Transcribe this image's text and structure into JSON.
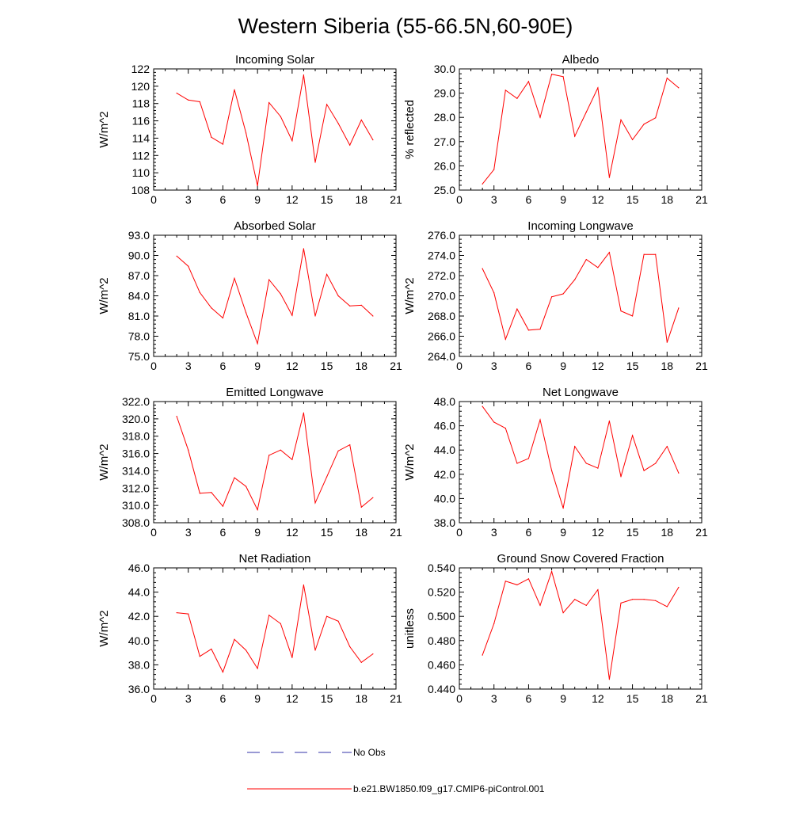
{
  "figure": {
    "title": "Western Siberia (55-66.5N,60-90E)",
    "line_color": "#ff0000",
    "obs_color": "#3333aa"
  },
  "legend": {
    "items": [
      {
        "label": "No Obs",
        "style": "dashed",
        "color": "#3333aa"
      },
      {
        "label": "b.e21.BW1850.f09_g17.CMIP6-piControl.001",
        "style": "solid",
        "color": "#ff0000"
      }
    ]
  },
  "chart_data": [
    {
      "type": "line",
      "title": "Incoming Solar",
      "ylabel": "W/m^2",
      "xlim": [
        0,
        21
      ],
      "ylim": [
        108,
        122
      ],
      "xticks": [
        0,
        3,
        6,
        9,
        12,
        15,
        18,
        21
      ],
      "yticks": [
        108,
        110,
        112,
        114,
        116,
        118,
        120,
        122
      ],
      "ytick_labels": [
        "108",
        "110",
        "112",
        "114",
        "116",
        "118",
        "120",
        "122"
      ],
      "series": [
        {
          "x": [
            2,
            3,
            4,
            5,
            6,
            7,
            8,
            9,
            10,
            11,
            12,
            13,
            14,
            15,
            16,
            17,
            18,
            19
          ],
          "values": [
            119.2,
            118.4,
            118.2,
            114.1,
            113.3,
            119.6,
            114.6,
            108.5,
            118.1,
            116.5,
            113.7,
            121.3,
            111.2,
            117.9,
            115.7,
            113.2,
            116.1,
            113.8
          ]
        }
      ]
    },
    {
      "type": "line",
      "title": "Albedo",
      "ylabel": "% reflected",
      "xlim": [
        0,
        21
      ],
      "ylim": [
        25,
        30
      ],
      "xticks": [
        0,
        3,
        6,
        9,
        12,
        15,
        18,
        21
      ],
      "yticks": [
        25,
        26,
        27,
        28,
        29,
        30
      ],
      "ytick_labels": [
        "25.0",
        "26.0",
        "27.0",
        "28.0",
        "29.0",
        "30.0"
      ],
      "series": [
        {
          "x": [
            2,
            3,
            4,
            5,
            6,
            7,
            8,
            9,
            10,
            11,
            12,
            13,
            14,
            15,
            16,
            17,
            18,
            19
          ],
          "values": [
            25.25,
            25.85,
            29.12,
            28.78,
            29.48,
            28.0,
            29.78,
            29.68,
            27.22,
            28.22,
            29.22,
            25.52,
            27.9,
            27.08,
            27.72,
            27.98,
            29.62,
            29.22
          ]
        }
      ]
    },
    {
      "type": "line",
      "title": "Absorbed Solar",
      "ylabel": "W/m^2",
      "xlim": [
        0,
        21
      ],
      "ylim": [
        75,
        93
      ],
      "xticks": [
        0,
        3,
        6,
        9,
        12,
        15,
        18,
        21
      ],
      "yticks": [
        75,
        78,
        81,
        84,
        87,
        90,
        93
      ],
      "ytick_labels": [
        "75.0",
        "78.0",
        "81.0",
        "84.0",
        "87.0",
        "90.0",
        "93.0"
      ],
      "series": [
        {
          "x": [
            2,
            3,
            4,
            5,
            6,
            7,
            8,
            9,
            10,
            11,
            12,
            13,
            14,
            15,
            16,
            17,
            18,
            19
          ],
          "values": [
            89.9,
            88.4,
            84.5,
            82.2,
            80.7,
            86.6,
            81.5,
            76.9,
            86.4,
            84.3,
            81.1,
            91.0,
            81.0,
            87.2,
            84.0,
            82.5,
            82.6,
            81.0
          ]
        }
      ]
    },
    {
      "type": "line",
      "title": "Incoming Longwave",
      "ylabel": "W/m^2",
      "xlim": [
        0,
        21
      ],
      "ylim": [
        264,
        276
      ],
      "xticks": [
        0,
        3,
        6,
        9,
        12,
        15,
        18,
        21
      ],
      "yticks": [
        264,
        266,
        268,
        270,
        272,
        274,
        276
      ],
      "ytick_labels": [
        "264.0",
        "266.0",
        "268.0",
        "270.0",
        "272.0",
        "274.0",
        "276.0"
      ],
      "series": [
        {
          "x": [
            2,
            3,
            4,
            5,
            6,
            7,
            8,
            9,
            10,
            11,
            12,
            13,
            14,
            15,
            16,
            17,
            18,
            19
          ],
          "values": [
            272.7,
            270.3,
            265.7,
            268.7,
            266.6,
            266.7,
            269.9,
            270.2,
            271.6,
            273.6,
            272.8,
            274.3,
            268.5,
            268.0,
            274.1,
            274.1,
            265.4,
            268.8
          ]
        }
      ]
    },
    {
      "type": "line",
      "title": "Emitted Longwave",
      "ylabel": "W/m^2",
      "xlim": [
        0,
        21
      ],
      "ylim": [
        308,
        322
      ],
      "xticks": [
        0,
        3,
        6,
        9,
        12,
        15,
        18,
        21
      ],
      "yticks": [
        308,
        310,
        312,
        314,
        316,
        318,
        320,
        322
      ],
      "ytick_labels": [
        "308.0",
        "310.0",
        "312.0",
        "314.0",
        "316.0",
        "318.0",
        "320.0",
        "322.0"
      ],
      "series": [
        {
          "x": [
            2,
            3,
            4,
            5,
            6,
            7,
            8,
            9,
            10,
            11,
            12,
            13,
            14,
            15,
            16,
            17,
            18,
            19
          ],
          "values": [
            320.3,
            316.4,
            311.4,
            311.5,
            309.9,
            313.2,
            312.2,
            309.5,
            315.8,
            316.4,
            315.3,
            320.7,
            310.3,
            313.3,
            316.3,
            317.0,
            309.8,
            310.9
          ]
        }
      ]
    },
    {
      "type": "line",
      "title": "Net Longwave",
      "ylabel": "W/m^2",
      "xlim": [
        0,
        21
      ],
      "ylim": [
        38,
        48
      ],
      "xticks": [
        0,
        3,
        6,
        9,
        12,
        15,
        18,
        21
      ],
      "yticks": [
        38,
        40,
        42,
        44,
        46,
        48
      ],
      "ytick_labels": [
        "38.0",
        "40.0",
        "42.0",
        "44.0",
        "46.0",
        "48.0"
      ],
      "series": [
        {
          "x": [
            2,
            3,
            4,
            5,
            6,
            7,
            8,
            9,
            10,
            11,
            12,
            13,
            14,
            15,
            16,
            17,
            18,
            19
          ],
          "values": [
            47.6,
            46.3,
            45.8,
            42.9,
            43.3,
            46.5,
            42.3,
            39.2,
            44.3,
            42.9,
            42.5,
            46.4,
            41.8,
            45.2,
            42.3,
            42.9,
            44.3,
            42.1
          ]
        }
      ]
    },
    {
      "type": "line",
      "title": "Net Radiation",
      "ylabel": "W/m^2",
      "xlim": [
        0,
        21
      ],
      "ylim": [
        36,
        46
      ],
      "xticks": [
        0,
        3,
        6,
        9,
        12,
        15,
        18,
        21
      ],
      "yticks": [
        36,
        38,
        40,
        42,
        44,
        46
      ],
      "ytick_labels": [
        "36.0",
        "38.0",
        "40.0",
        "42.0",
        "44.0",
        "46.0"
      ],
      "series": [
        {
          "x": [
            2,
            3,
            4,
            5,
            6,
            7,
            8,
            9,
            10,
            11,
            12,
            13,
            14,
            15,
            16,
            17,
            18,
            19
          ],
          "values": [
            42.3,
            42.2,
            38.7,
            39.3,
            37.4,
            40.1,
            39.2,
            37.7,
            42.1,
            41.4,
            38.6,
            44.6,
            39.2,
            42.0,
            41.6,
            39.5,
            38.2,
            38.9
          ]
        }
      ]
    },
    {
      "type": "line",
      "title": "Ground Snow Covered Fraction",
      "ylabel": "unitless",
      "xlim": [
        0,
        21
      ],
      "ylim": [
        0.44,
        0.54
      ],
      "xticks": [
        0,
        3,
        6,
        9,
        12,
        15,
        18,
        21
      ],
      "yticks": [
        0.44,
        0.46,
        0.48,
        0.5,
        0.52,
        0.54
      ],
      "ytick_labels": [
        "0.440",
        "0.460",
        "0.480",
        "0.500",
        "0.520",
        "0.540"
      ],
      "series": [
        {
          "x": [
            2,
            3,
            4,
            5,
            6,
            7,
            8,
            9,
            10,
            11,
            12,
            13,
            14,
            15,
            16,
            17,
            18,
            19
          ],
          "values": [
            0.468,
            0.494,
            0.529,
            0.526,
            0.531,
            0.509,
            0.537,
            0.503,
            0.514,
            0.509,
            0.522,
            0.448,
            0.511,
            0.514,
            0.514,
            0.513,
            0.508,
            0.524
          ]
        }
      ]
    }
  ]
}
